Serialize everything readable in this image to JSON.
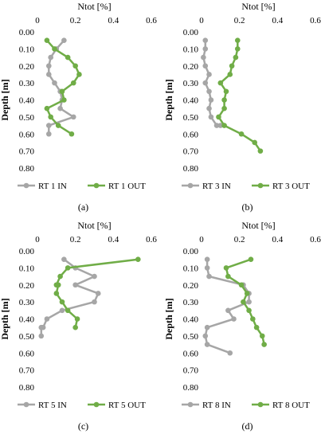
{
  "chart_data": [
    {
      "type": "line",
      "panel_label": "(a)",
      "title": "Ntot [%]",
      "xlabel": "Ntot [%]",
      "ylabel": "Depth [m]",
      "xlim": [
        0,
        0.6
      ],
      "ylim": [
        0,
        0.8
      ],
      "y_inverted": true,
      "x_ticks": [
        "0",
        "0.2",
        "0.4",
        "0.6"
      ],
      "y_ticks": [
        "0.00",
        "0.10",
        "0.20",
        "0.30",
        "0.40",
        "0.50",
        "0.60",
        "0.70",
        "0.80"
      ],
      "series": [
        {
          "name": "RT 1 IN",
          "color": "#a6a6a6",
          "x": [
            0.14,
            0.1,
            0.07,
            0.06,
            0.06,
            0.09,
            0.12,
            0.13,
            0.12,
            0.19,
            0.06,
            0.06
          ],
          "y": [
            0.05,
            0.1,
            0.15,
            0.2,
            0.25,
            0.3,
            0.35,
            0.4,
            0.45,
            0.5,
            0.55,
            0.6
          ]
        },
        {
          "name": "RT 1 OUT",
          "color": "#70ad47",
          "x": [
            0.05,
            0.09,
            0.16,
            0.2,
            0.22,
            0.19,
            0.13,
            0.14,
            0.05,
            0.07,
            0.11,
            0.18
          ],
          "y": [
            0.05,
            0.1,
            0.15,
            0.2,
            0.25,
            0.3,
            0.35,
            0.4,
            0.45,
            0.5,
            0.55,
            0.6
          ]
        }
      ]
    },
    {
      "type": "line",
      "panel_label": "(b)",
      "title": "Ntot [%]",
      "xlabel": "Ntot [%]",
      "ylabel": "Depth [m]",
      "xlim": [
        0,
        0.6
      ],
      "ylim": [
        0,
        0.8
      ],
      "y_inverted": true,
      "x_ticks": [
        "0",
        "0.2",
        "0.4",
        "0.6"
      ],
      "y_ticks": [
        "0.00",
        "0.10",
        "0.20",
        "0.30",
        "0.40",
        "0.50",
        "0.60",
        "0.70",
        "0.80"
      ],
      "series": [
        {
          "name": "RT 3 IN",
          "color": "#a6a6a6",
          "x": [
            0.02,
            0.02,
            0.01,
            0.02,
            0.04,
            0.02,
            0.04,
            0.05,
            0.04,
            0.05,
            0.08,
            0.1
          ],
          "y": [
            0.05,
            0.1,
            0.15,
            0.2,
            0.25,
            0.3,
            0.35,
            0.4,
            0.45,
            0.5,
            0.55,
            0.55
          ]
        },
        {
          "name": "RT 3 OUT",
          "color": "#70ad47",
          "x": [
            0.19,
            0.19,
            0.18,
            0.16,
            0.15,
            0.1,
            0.13,
            0.12,
            0.12,
            0.09,
            0.12,
            0.21,
            0.28,
            0.31
          ],
          "y": [
            0.05,
            0.1,
            0.15,
            0.2,
            0.25,
            0.3,
            0.35,
            0.4,
            0.45,
            0.5,
            0.55,
            0.6,
            0.65,
            0.7
          ]
        }
      ]
    },
    {
      "type": "line",
      "panel_label": "(c)",
      "title": "Ntot [%]",
      "xlabel": "Ntot [%]",
      "ylabel": "Depth [m]",
      "xlim": [
        0,
        0.6
      ],
      "ylim": [
        0,
        0.8
      ],
      "y_inverted": true,
      "x_ticks": [
        "0",
        "0.2",
        "0.4",
        "0.6"
      ],
      "y_ticks": [
        "0.00",
        "0.10",
        "0.20",
        "0.30",
        "0.40",
        "0.50",
        "0.60",
        "0.70",
        "0.80"
      ],
      "series": [
        {
          "name": "RT 5 IN",
          "color": "#a6a6a6",
          "x": [
            0.14,
            0.2,
            0.3,
            0.2,
            0.32,
            0.3,
            0.13,
            0.05,
            0.03,
            0.02,
            0.02
          ],
          "y": [
            0.05,
            0.1,
            0.15,
            0.2,
            0.25,
            0.3,
            0.35,
            0.4,
            0.45,
            0.45,
            0.5
          ]
        },
        {
          "name": "RT 5 OUT",
          "color": "#70ad47",
          "x": [
            0.53,
            0.16,
            0.12,
            0.1,
            0.11,
            0.1,
            0.13,
            0.16,
            0.21,
            0.2
          ],
          "y": [
            0.05,
            0.1,
            0.15,
            0.2,
            0.2,
            0.25,
            0.3,
            0.35,
            0.4,
            0.45
          ]
        }
      ]
    },
    {
      "type": "line",
      "panel_label": "(d)",
      "title": "Ntot [%]",
      "xlabel": "Ntot [%]",
      "ylabel": "Depth [m]",
      "xlim": [
        0,
        0.6
      ],
      "ylim": [
        0,
        0.8
      ],
      "y_inverted": true,
      "x_ticks": [
        "0",
        "0.2",
        "0.4",
        "0.6"
      ],
      "y_ticks": [
        "0.00",
        "0.10",
        "0.20",
        "0.30",
        "0.40",
        "0.50",
        "0.60",
        "0.70",
        "0.80"
      ],
      "series": [
        {
          "name": "RT 8 IN",
          "color": "#a6a6a6",
          "x": [
            0.03,
            0.03,
            0.04,
            0.22,
            0.25,
            0.25,
            0.14,
            0.17,
            0.03,
            0.02,
            0.03,
            0.15
          ],
          "y": [
            0.05,
            0.1,
            0.15,
            0.2,
            0.25,
            0.3,
            0.35,
            0.4,
            0.45,
            0.5,
            0.55,
            0.6
          ]
        },
        {
          "name": "RT 8 OUT",
          "color": "#70ad47",
          "x": [
            0.26,
            0.13,
            0.14,
            0.21,
            0.24,
            0.22,
            0.25,
            0.27,
            0.29,
            0.32,
            0.33
          ],
          "y": [
            0.05,
            0.1,
            0.15,
            0.2,
            0.25,
            0.3,
            0.35,
            0.4,
            0.45,
            0.5,
            0.55
          ]
        }
      ]
    }
  ]
}
